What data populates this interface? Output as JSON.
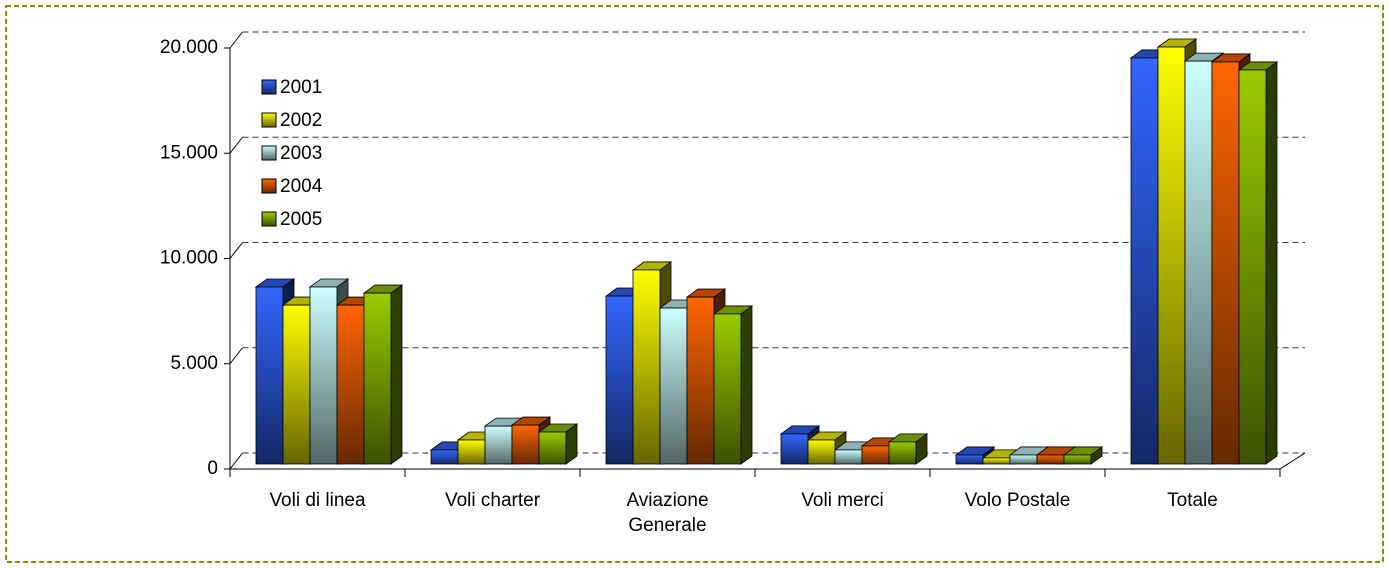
{
  "chart_data": {
    "type": "bar3d",
    "categories": [
      "Voli di linea",
      "Voli charter",
      "Aviazione Generale",
      "Voli merci",
      "Volo Postale",
      "Totale"
    ],
    "series": [
      {
        "name": "2001",
        "color": "#3366ff",
        "values": [
          8410,
          670,
          7980,
          1430,
          430,
          19290
        ]
      },
      {
        "name": "2002",
        "color": "#ffff00",
        "values": [
          7550,
          1140,
          9220,
          1140,
          290,
          19810
        ]
      },
      {
        "name": "2003",
        "color": "#ccffff",
        "values": [
          8410,
          1800,
          7410,
          670,
          430,
          19140
        ]
      },
      {
        "name": "2004",
        "color": "#ff6600",
        "values": [
          7550,
          1850,
          7930,
          860,
          430,
          19100
        ]
      },
      {
        "name": "2005",
        "color": "#99cc00",
        "values": [
          8120,
          1520,
          7130,
          1050,
          430,
          18720
        ]
      }
    ],
    "ylim": [
      0,
      20000
    ],
    "yticks": [
      0,
      {
        "value": 5000,
        "label": "5.000"
      },
      {
        "value": 10000,
        "label": "10.000"
      },
      {
        "value": 15000,
        "label": "15.000"
      },
      {
        "value": 20000,
        "label": "20.000"
      }
    ],
    "grid": true,
    "legend": "top-left"
  }
}
